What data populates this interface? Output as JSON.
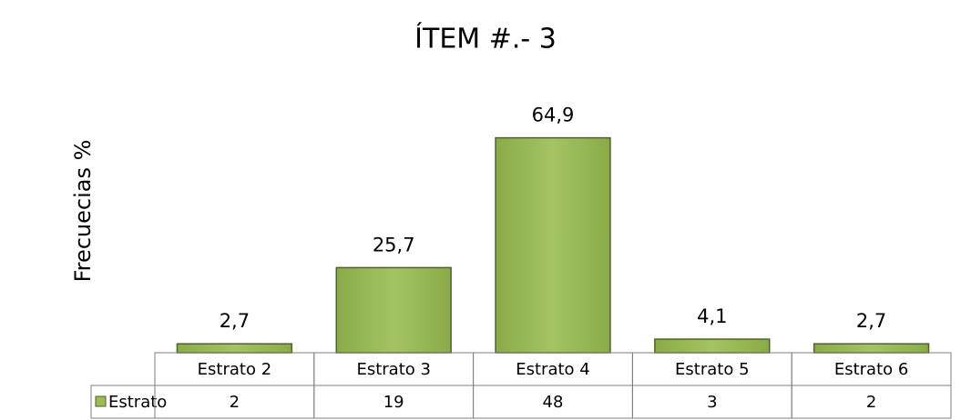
{
  "chart_data": {
    "type": "bar",
    "title": "ÍTEM #.- 3",
    "y_label": "Frecuecias %",
    "categories": [
      "Estrato 2",
      "Estrato 3",
      "Estrato 4",
      "Estrato 5",
      "Estrato 6"
    ],
    "series": [
      {
        "name": "Estrato",
        "color": "#9bbb59",
        "values": [
          2.7,
          25.7,
          64.9,
          4.1,
          2.7
        ],
        "value_labels": [
          "2,7",
          "25,7",
          "64,9",
          "4,1",
          "2,7"
        ],
        "table_values": [
          2,
          19,
          48,
          3,
          2
        ]
      }
    ],
    "ylim": [
      0,
      70
    ]
  }
}
